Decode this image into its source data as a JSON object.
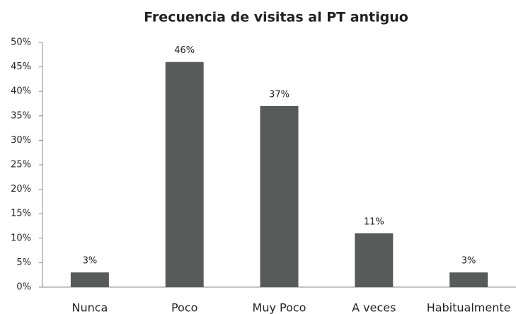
{
  "chart_data": {
    "type": "bar",
    "title": "Frecuencia de visitas al PT antiguo",
    "categories": [
      "Nunca",
      "Poco",
      "Muy Poco",
      "A veces",
      "Habitualmente"
    ],
    "values": [
      3,
      46,
      37,
      11,
      3
    ],
    "value_labels": [
      "3%",
      "46%",
      "37%",
      "11%",
      "3%"
    ],
    "color": "#595b5b",
    "ylim": [
      0,
      50
    ],
    "yticks": [
      {
        "value": 0,
        "label": "0%"
      },
      {
        "value": 5,
        "label": "5%"
      },
      {
        "value": 10,
        "label": "10%"
      },
      {
        "value": 15,
        "label": "15%"
      },
      {
        "value": 20,
        "label": "20%"
      },
      {
        "value": 25,
        "label": "25%"
      },
      {
        "value": 30,
        "label": "30%"
      },
      {
        "value": 35,
        "label": "35%"
      },
      {
        "value": 40,
        "label": "40%"
      },
      {
        "value": 45,
        "label": "45%"
      },
      {
        "value": 50,
        "label": "50%"
      }
    ],
    "grid": false
  }
}
